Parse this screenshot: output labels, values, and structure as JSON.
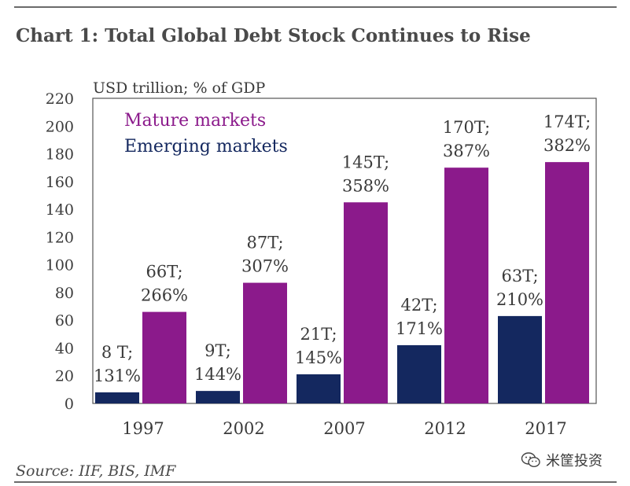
{
  "header": {
    "title": "Chart 1: Total Global Debt Stock Continues to Rise"
  },
  "footer": {
    "source": "Source: IIF, BIS, IMF",
    "watermark": "米筐投资",
    "watermark_icon": "wechat-icon"
  },
  "colors": {
    "mature": "#8b1a8b",
    "emerging": "#14285f",
    "text": "#3a3a3a",
    "axis": "#555555"
  },
  "chart_data": {
    "type": "bar",
    "title": "Chart 1: Total Global Debt Stock Continues to Rise",
    "ylabel": "USD trillion; % of GDP",
    "xlabel": "",
    "ylim": [
      0,
      220
    ],
    "yticks": [
      0,
      20,
      40,
      60,
      80,
      100,
      120,
      140,
      160,
      180,
      200,
      220
    ],
    "categories": [
      "1997",
      "2002",
      "2007",
      "2012",
      "2017"
    ],
    "legend_position": "top-left",
    "series": [
      {
        "name": "Emerging markets",
        "values": [
          8,
          9,
          21,
          42,
          63
        ],
        "labels": [
          [
            "8 T;",
            "131%"
          ],
          [
            "9T;",
            "144%"
          ],
          [
            "21T;",
            "145%"
          ],
          [
            "42T;",
            "171%"
          ],
          [
            "63T;",
            "210%"
          ]
        ]
      },
      {
        "name": "Mature markets",
        "values": [
          66,
          87,
          145,
          170,
          174
        ],
        "labels": [
          [
            "66T;",
            "266%"
          ],
          [
            "87T;",
            "307%"
          ],
          [
            "145T;",
            "358%"
          ],
          [
            "170T;",
            "387%"
          ],
          [
            "174T;",
            "382%"
          ]
        ]
      }
    ]
  }
}
